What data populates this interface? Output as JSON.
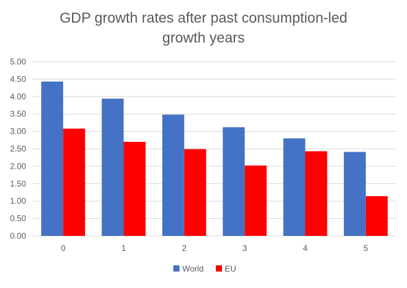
{
  "chart_data": {
    "type": "bar",
    "title_lines": [
      "GDP growth rates after past consumption-led",
      "growth years"
    ],
    "xlabel": "",
    "ylabel": "",
    "categories": [
      "0",
      "1",
      "2",
      "3",
      "4",
      "5"
    ],
    "series": [
      {
        "name": "World",
        "color": "#4472C4",
        "values": [
          4.43,
          3.94,
          3.48,
          3.12,
          2.8,
          2.41
        ]
      },
      {
        "name": "EU",
        "color": "#FF0000",
        "values": [
          3.08,
          2.7,
          2.49,
          2.02,
          2.43,
          1.14
        ]
      }
    ],
    "ylim": [
      0,
      5
    ],
    "yticks": [
      "0.00",
      "0.50",
      "1.00",
      "1.50",
      "2.00",
      "2.50",
      "3.00",
      "3.50",
      "4.00",
      "4.50",
      "5.00"
    ],
    "grid": true,
    "legend_position": "bottom"
  }
}
